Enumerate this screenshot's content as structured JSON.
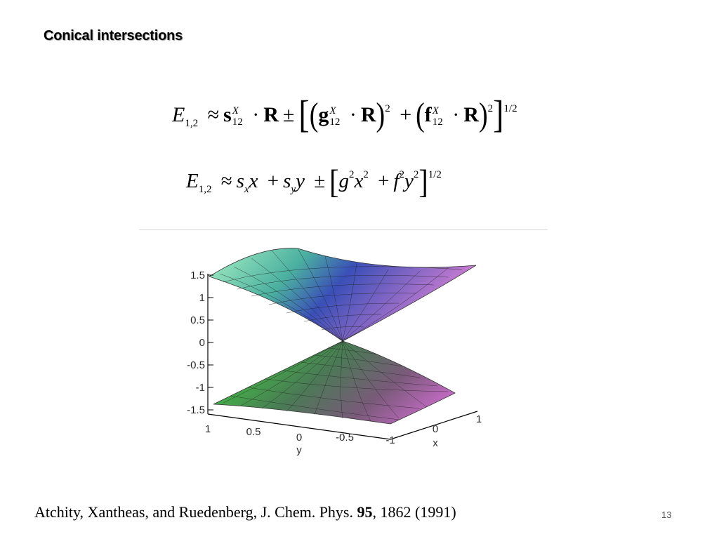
{
  "slide": {
    "title": "Conical intersections",
    "page_number": "13"
  },
  "equations": {
    "eq1": {
      "E": "E",
      "E_sub": "1,2",
      "approx": "≈",
      "s": "s",
      "s_sup": "X",
      "s_sub": "12",
      "dot": "·",
      "R": "R",
      "pm": "±",
      "g": "g",
      "g_sup": "X",
      "g_sub": "12",
      "sq1": "2",
      "plus": "+",
      "f": "f",
      "f_sup": "X",
      "f_sub": "12",
      "sq2": "2",
      "power": "1/2"
    },
    "eq2": {
      "E": "E",
      "E_sub": "1,2",
      "approx": "≈",
      "sx": "s",
      "sx_sub": "x",
      "x": "x",
      "plus1": "+",
      "sy": "s",
      "sy_sub": "y",
      "y": "y",
      "pm": "±",
      "g": "g",
      "g_sq": "2",
      "x2": "x",
      "x_sq": "2",
      "plus2": "+",
      "f": "f",
      "f_sq": "2",
      "y2": "y",
      "y_sq": "2",
      "power": "1/2"
    }
  },
  "plot": {
    "z_ticks": [
      "1.5",
      "1",
      "0.5",
      "0",
      "-0.5",
      "-1",
      "-1.5"
    ],
    "y_ticks": [
      "1",
      "0.5",
      "0",
      "-0.5",
      "-1"
    ],
    "x_ticks": [
      "0",
      "1"
    ],
    "y_axis_label": "y",
    "x_axis_label": "x",
    "colors": {
      "upper_left": "#8fe6b8",
      "upper_right": "#d27fd2",
      "upper_center": "#3a4fb8",
      "lower_left": "#3fd23f",
      "lower_right": "#a05aa5",
      "mesh": "#222222"
    }
  },
  "caption": {
    "authors": "Atchity, Xantheas, and Ruedenberg, J. Chem. Phys. ",
    "volume": "95",
    "rest": ", 1862 (1991)"
  }
}
